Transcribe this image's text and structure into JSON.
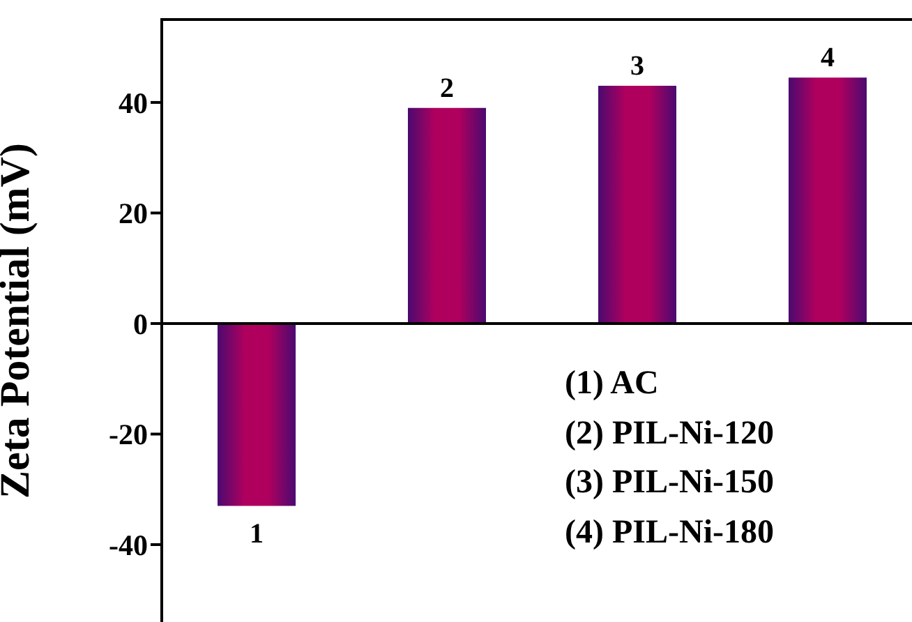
{
  "chart_data": {
    "type": "bar",
    "ylabel": "Zeta Potential (mV)",
    "categories": [
      "1",
      "2",
      "3",
      "4"
    ],
    "values": [
      -33,
      39,
      43,
      44.5
    ],
    "color": "#b0005e",
    "ylim": [
      -54,
      55
    ],
    "yticks": [
      -40,
      -20,
      0,
      20,
      40
    ],
    "ref_lines": [
      {
        "axis": "y",
        "value": 0
      }
    ],
    "tick_labels": "y",
    "annotations": [
      "(1) AC",
      "(2) PIL-Ni-120",
      "(3) PIL-Ni-150",
      "(4) PIL-Ni-180"
    ]
  }
}
